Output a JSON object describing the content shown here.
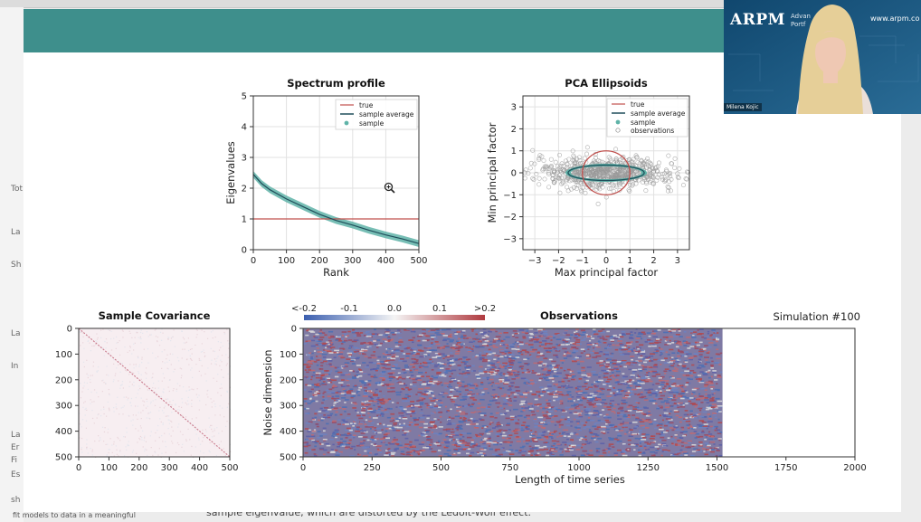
{
  "background_page": {
    "left_fragments": [
      "Sh",
      "Tot",
      "La",
      "La",
      "In",
      "La",
      "Er",
      "Fi",
      "Es",
      "sh"
    ],
    "bottom_text": "sample eigenvalue, which are distorted by the Ledoit-Wolf effect.",
    "left_bottom_text": "fit models to data in a meaningful"
  },
  "webcam": {
    "brand": "ARPM",
    "brand_sub": "Advan\nPortf",
    "url": "www.arpm.co",
    "presenter": "Milena Kojic"
  },
  "charts": {
    "spectrum": {
      "title": "Spectrum profile",
      "xlabel": "Rank",
      "ylabel": "Eigenvalues",
      "xticks": [
        "0",
        "100",
        "200",
        "300",
        "400",
        "500"
      ],
      "yticks": [
        "0",
        "1",
        "2",
        "3",
        "4",
        "5"
      ],
      "legend": [
        "true",
        "sample average",
        "sample"
      ]
    },
    "pca": {
      "title": "PCA Ellipsoids",
      "xlabel": "Max principal factor",
      "ylabel": "Min principal factor",
      "xticks": [
        "−3",
        "−2",
        "−1",
        "0",
        "1",
        "2",
        "3"
      ],
      "yticks": [
        "−3",
        "−2",
        "−1",
        "0",
        "1",
        "2",
        "3"
      ],
      "legend": [
        "true",
        "sample average",
        "sample",
        "observations"
      ]
    },
    "covariance": {
      "title": "Sample Covariance",
      "xticks": [
        "0",
        "100",
        "200",
        "300",
        "400",
        "500"
      ],
      "yticks": [
        "0",
        "100",
        "200",
        "300",
        "400",
        "500"
      ]
    },
    "observations": {
      "title": "Observations",
      "sim_label": "Simulation #100",
      "xlabel": "Length of time series",
      "ylabel": "Noise dimension",
      "xticks": [
        "0",
        "250",
        "500",
        "750",
        "1000",
        "1250",
        "1500",
        "1750",
        "2000"
      ],
      "yticks": [
        "0",
        "100",
        "200",
        "300",
        "400",
        "500"
      ],
      "colorbar_ticks": [
        "<-0.2",
        "-0.1",
        "0.0",
        "0.1",
        ">0.2"
      ]
    }
  },
  "chart_data": [
    {
      "type": "line",
      "title": "Spectrum profile",
      "xlabel": "Rank",
      "ylabel": "Eigenvalues",
      "xlim": [
        0,
        500
      ],
      "ylim": [
        0,
        5
      ],
      "grid": true,
      "legend": "top-right",
      "series": [
        {
          "name": "true",
          "color": "#c0504d",
          "x": [
            0,
            500
          ],
          "y": [
            1,
            1
          ]
        },
        {
          "name": "sample average",
          "color": "#1f4e5a",
          "x": [
            0,
            25,
            50,
            100,
            150,
            200,
            250,
            300,
            350,
            400,
            450,
            500
          ],
          "y": [
            2.45,
            2.15,
            1.95,
            1.65,
            1.4,
            1.15,
            0.95,
            0.8,
            0.63,
            0.48,
            0.35,
            0.2
          ]
        },
        {
          "name": "sample",
          "color": "#5fb3a8"
        }
      ]
    },
    {
      "type": "scatter",
      "title": "PCA Ellipsoids",
      "xlabel": "Max principal factor",
      "ylabel": "Min principal factor",
      "xlim": [
        -3.5,
        3.5
      ],
      "ylim": [
        -3.5,
        3.5
      ],
      "grid": true,
      "legend": "top-right",
      "true_circle": {
        "center": [
          0,
          0
        ],
        "radius": 1
      },
      "sample_ellipse": {
        "center": [
          0,
          0
        ],
        "rx": 1.6,
        "ry": 0.35
      },
      "observations_spread": {
        "x_sd": 1.5,
        "y_sd": 0.35
      }
    },
    {
      "type": "heatmap",
      "title": "Sample Covariance",
      "xlim": [
        0,
        500
      ],
      "ylim": [
        0,
        500
      ],
      "pattern": "diagonal"
    },
    {
      "type": "heatmap",
      "title": "Observations",
      "xlabel": "Length of time series",
      "ylabel": "Noise dimension",
      "xlim": [
        0,
        2000
      ],
      "ylim": [
        0,
        500
      ],
      "filled_columns": 1520,
      "colorbar": [
        -0.2,
        0.2
      ]
    }
  ]
}
